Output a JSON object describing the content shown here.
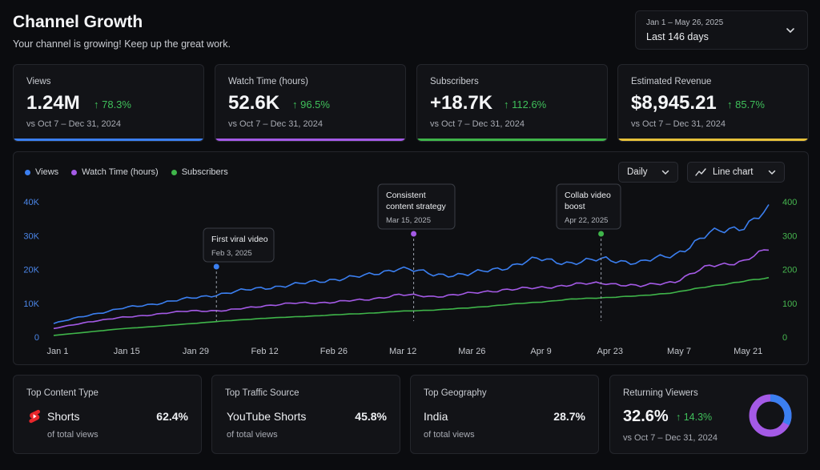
{
  "header": {
    "title": "Channel Growth",
    "subtitle": "Your channel is growing! Keep up the great work.",
    "date_range_label": "Jan 1 – May 26, 2025",
    "date_range_value": "Last 146 days"
  },
  "kpis": [
    {
      "label": "Views",
      "value": "1.24M",
      "change": "↑ 78.3%",
      "compare": "vs Oct 7 – Dec 31, 2024",
      "color": "#3b7ff0"
    },
    {
      "label": "Watch Time (hours)",
      "value": "52.6K",
      "change": "↑ 96.5%",
      "compare": "vs Oct 7 – Dec 31, 2024",
      "color": "#a45ae6"
    },
    {
      "label": "Subscribers",
      "value": "+18.7K",
      "change": "↑ 112.6%",
      "compare": "vs Oct 7 – Dec 31, 2024",
      "color": "#3fb54a"
    },
    {
      "label": "Estimated Revenue",
      "value": "$8,945.21",
      "change": "↑ 85.7%",
      "compare": "vs Oct 7 – Dec 31, 2024",
      "color": "#e6c13a"
    }
  ],
  "chart_controls": {
    "granularity": "Daily",
    "chart_type": "Line chart"
  },
  "chart_data": {
    "type": "line",
    "x_ticks": [
      "Jan 1",
      "Jan 15",
      "Jan 29",
      "Feb 12",
      "Feb 26",
      "Mar 12",
      "Mar 26",
      "Apr 9",
      "Apr 23",
      "May 7",
      "May 21"
    ],
    "y_left_ticks": [
      "0",
      "10K",
      "20K",
      "30K",
      "40K"
    ],
    "y_left_range": [
      0,
      40000
    ],
    "y_right_ticks": [
      "0",
      "100",
      "200",
      "300",
      "400"
    ],
    "y_right_range": [
      0,
      400
    ],
    "x_days": [
      0,
      7,
      14,
      21,
      28,
      35,
      42,
      49,
      56,
      63,
      70,
      77,
      84,
      91,
      98,
      105,
      112,
      119,
      126,
      133,
      140,
      145
    ],
    "series": [
      {
        "name": "Views",
        "axis": "left",
        "color": "#3b7ff0",
        "values": [
          4000,
          6500,
          8500,
          10000,
          11500,
          13000,
          14500,
          15500,
          17000,
          18000,
          20500,
          18500,
          18500,
          20500,
          23000,
          22000,
          23000,
          22000,
          24500,
          30500,
          33000,
          37500
        ]
      },
      {
        "name": "Watch Time (hours)",
        "axis": "right",
        "color": "#a45ae6",
        "values": [
          25,
          45,
          58,
          68,
          78,
          78,
          92,
          100,
          103,
          110,
          125,
          120,
          128,
          140,
          145,
          155,
          160,
          150,
          165,
          210,
          225,
          260
        ]
      },
      {
        "name": "Subscribers",
        "axis": "right",
        "color": "#3fb54a",
        "values": [
          5,
          15,
          25,
          32,
          40,
          48,
          55,
          60,
          65,
          70,
          76,
          80,
          86,
          95,
          103,
          112,
          117,
          122,
          132,
          150,
          165,
          175
        ]
      }
    ],
    "annotations": [
      {
        "title": "First viral video",
        "date": "Feb 3, 2025",
        "day": 33,
        "series": 0
      },
      {
        "title": "Consistent content strategy",
        "date": "Mar 15, 2025",
        "day": 73,
        "series": 1
      },
      {
        "title": "Collab video boost",
        "date": "Apr 22, 2025",
        "day": 111,
        "series": 2
      }
    ]
  },
  "bottom": [
    {
      "label": "Top Content Type",
      "item": "Shorts",
      "pct": "62.4%",
      "sub": "of total views",
      "icon": "shorts-icon"
    },
    {
      "label": "Top Traffic Source",
      "item": "YouTube Shorts",
      "pct": "45.8%",
      "sub": "of total views"
    },
    {
      "label": "Top Geography",
      "item": "India",
      "pct": "28.7%",
      "sub": "of total views"
    }
  ],
  "returning": {
    "label": "Returning Viewers",
    "value": "32.6%",
    "change": "↑ 14.3%",
    "compare": "vs Oct 7 – Dec 31, 2024",
    "ring_fraction": 0.326,
    "ring_colors": [
      "#3b7ff0",
      "#a45ae6"
    ]
  }
}
